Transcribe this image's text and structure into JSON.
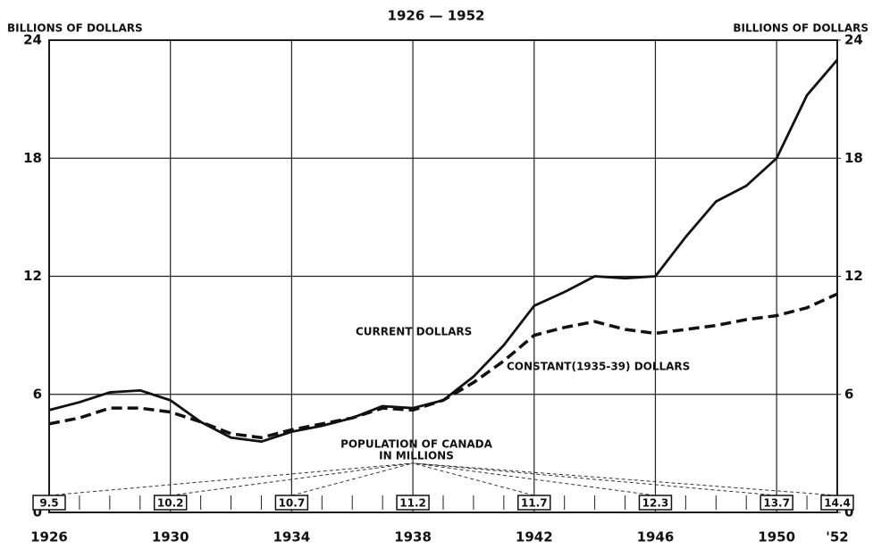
{
  "chart_data": {
    "type": "line",
    "title": "1926 — 1952",
    "ylabel": "BILLIONS OF DOLLARS",
    "y2label": "BILLIONS OF DOLLARS",
    "x": [
      1926,
      1927,
      1928,
      1929,
      1930,
      1931,
      1932,
      1933,
      1934,
      1935,
      1936,
      1937,
      1938,
      1939,
      1940,
      1941,
      1942,
      1943,
      1944,
      1945,
      1946,
      1947,
      1948,
      1949,
      1950,
      1951,
      1952
    ],
    "series": [
      {
        "name": "CURRENT DOLLARS",
        "color": "#111111",
        "dash": false,
        "values": [
          5.2,
          5.6,
          6.1,
          6.2,
          5.7,
          4.6,
          3.8,
          3.6,
          4.1,
          4.4,
          4.8,
          5.4,
          5.3,
          5.7,
          6.9,
          8.5,
          10.5,
          11.2,
          12.0,
          11.9,
          12.0,
          14.0,
          15.8,
          16.6,
          18.0,
          21.2,
          23.0
        ]
      },
      {
        "name": "CONSTANT(1935-39) DOLLARS",
        "color": "#111111",
        "dash": true,
        "values": [
          4.5,
          4.8,
          5.3,
          5.3,
          5.1,
          4.6,
          4.0,
          3.8,
          4.2,
          4.5,
          4.8,
          5.3,
          5.2,
          5.7,
          6.6,
          7.7,
          9.0,
          9.4,
          9.7,
          9.3,
          9.1,
          9.3,
          9.5,
          9.8,
          10.0,
          10.4,
          11.1
        ]
      }
    ],
    "population": {
      "label": [
        "POPULATION OF CANADA",
        "IN MILLIONS"
      ],
      "x": [
        1926,
        1930,
        1934,
        1938,
        1942,
        1946,
        1950,
        1952
      ],
      "values": [
        9.5,
        10.2,
        10.7,
        11.2,
        11.7,
        12.3,
        13.7,
        14.4
      ]
    },
    "xlim": [
      1926,
      1952
    ],
    "xticks": [
      1926,
      1930,
      1934,
      1938,
      1942,
      1946,
      1950,
      {
        "value": 1952,
        "label": "'52"
      }
    ],
    "ylim": [
      0,
      24
    ],
    "yticks": [
      0,
      6,
      12,
      18,
      24
    ],
    "y2lim": [
      0,
      24
    ],
    "y2ticks": [
      0,
      6,
      12,
      18,
      24
    ],
    "grid": true
  }
}
